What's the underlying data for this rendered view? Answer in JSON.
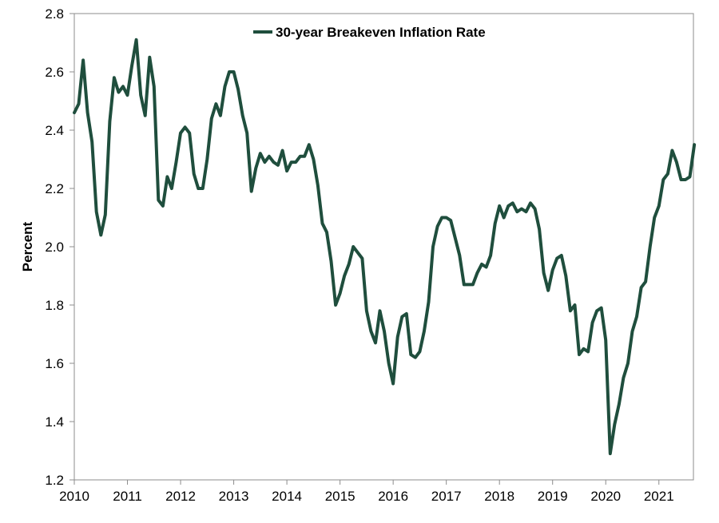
{
  "chart_data": {
    "type": "line",
    "title": "",
    "xlabel": "",
    "ylabel": "Percent",
    "ylim": [
      1.2,
      2.8
    ],
    "yticks": [
      "1.2",
      "1.4",
      "1.6",
      "1.8",
      "2.0",
      "2.2",
      "2.4",
      "2.6",
      "2.8"
    ],
    "xlim": [
      2010,
      2021.65
    ],
    "xticks": [
      "2010",
      "2011",
      "2012",
      "2013",
      "2014",
      "2015",
      "2016",
      "2017",
      "2018",
      "2019",
      "2020",
      "2021"
    ],
    "grid": false,
    "legend": "top-center",
    "line_color": "#1f4e3d",
    "series": [
      {
        "name": "30-year Breakeven Inflation Rate",
        "x": [
          2010.0,
          2010.083,
          2010.167,
          2010.25,
          2010.333,
          2010.417,
          2010.5,
          2010.583,
          2010.667,
          2010.75,
          2010.833,
          2010.917,
          2011.0,
          2011.083,
          2011.167,
          2011.25,
          2011.333,
          2011.417,
          2011.5,
          2011.583,
          2011.667,
          2011.75,
          2011.833,
          2011.917,
          2012.0,
          2012.083,
          2012.167,
          2012.25,
          2012.333,
          2012.417,
          2012.5,
          2012.583,
          2012.667,
          2012.75,
          2012.833,
          2012.917,
          2013.0,
          2013.083,
          2013.167,
          2013.25,
          2013.333,
          2013.417,
          2013.5,
          2013.583,
          2013.667,
          2013.75,
          2013.833,
          2013.917,
          2014.0,
          2014.083,
          2014.167,
          2014.25,
          2014.333,
          2014.417,
          2014.5,
          2014.583,
          2014.667,
          2014.75,
          2014.833,
          2014.917,
          2015.0,
          2015.083,
          2015.167,
          2015.25,
          2015.333,
          2015.417,
          2015.5,
          2015.583,
          2015.667,
          2015.75,
          2015.833,
          2015.917,
          2016.0,
          2016.083,
          2016.167,
          2016.25,
          2016.333,
          2016.417,
          2016.5,
          2016.583,
          2016.667,
          2016.75,
          2016.833,
          2016.917,
          2017.0,
          2017.083,
          2017.167,
          2017.25,
          2017.333,
          2017.417,
          2017.5,
          2017.583,
          2017.667,
          2017.75,
          2017.833,
          2017.917,
          2018.0,
          2018.083,
          2018.167,
          2018.25,
          2018.333,
          2018.417,
          2018.5,
          2018.583,
          2018.667,
          2018.75,
          2018.833,
          2018.917,
          2019.0,
          2019.083,
          2019.167,
          2019.25,
          2019.333,
          2019.417,
          2019.5,
          2019.583,
          2019.667,
          2019.75,
          2019.833,
          2019.917,
          2020.0,
          2020.083,
          2020.167,
          2020.25,
          2020.333,
          2020.417,
          2020.5,
          2020.583,
          2020.667,
          2020.75,
          2020.833,
          2020.917,
          2021.0,
          2021.083,
          2021.167,
          2021.25,
          2021.333,
          2021.417,
          2021.5,
          2021.583,
          2021.667
        ],
        "values": [
          2.46,
          2.49,
          2.64,
          2.46,
          2.36,
          2.12,
          2.04,
          2.11,
          2.43,
          2.58,
          2.53,
          2.55,
          2.52,
          2.62,
          2.71,
          2.52,
          2.45,
          2.65,
          2.55,
          2.16,
          2.14,
          2.24,
          2.2,
          2.29,
          2.39,
          2.41,
          2.39,
          2.25,
          2.2,
          2.2,
          2.3,
          2.44,
          2.49,
          2.45,
          2.55,
          2.6,
          2.6,
          2.54,
          2.45,
          2.39,
          2.19,
          2.27,
          2.32,
          2.29,
          2.31,
          2.29,
          2.28,
          2.33,
          2.26,
          2.29,
          2.29,
          2.31,
          2.31,
          2.35,
          2.3,
          2.21,
          2.08,
          2.05,
          1.95,
          1.8,
          1.84,
          1.9,
          1.94,
          2.0,
          1.98,
          1.96,
          1.78,
          1.71,
          1.67,
          1.78,
          1.71,
          1.6,
          1.53,
          1.69,
          1.76,
          1.77,
          1.63,
          1.62,
          1.64,
          1.71,
          1.81,
          2.0,
          2.07,
          2.1,
          2.1,
          2.09,
          2.03,
          1.97,
          1.87,
          1.87,
          1.87,
          1.91,
          1.94,
          1.93,
          1.97,
          2.08,
          2.14,
          2.1,
          2.14,
          2.15,
          2.12,
          2.13,
          2.12,
          2.15,
          2.13,
          2.06,
          1.91,
          1.85,
          1.92,
          1.96,
          1.97,
          1.9,
          1.78,
          1.8,
          1.63,
          1.65,
          1.64,
          1.74,
          1.78,
          1.79,
          1.68,
          1.29,
          1.39,
          1.46,
          1.55,
          1.6,
          1.71,
          1.76,
          1.86,
          1.88,
          2.0,
          2.1,
          2.14,
          2.23,
          2.25,
          2.33,
          2.29,
          2.23,
          2.23,
          2.24,
          2.35
        ]
      }
    ]
  }
}
